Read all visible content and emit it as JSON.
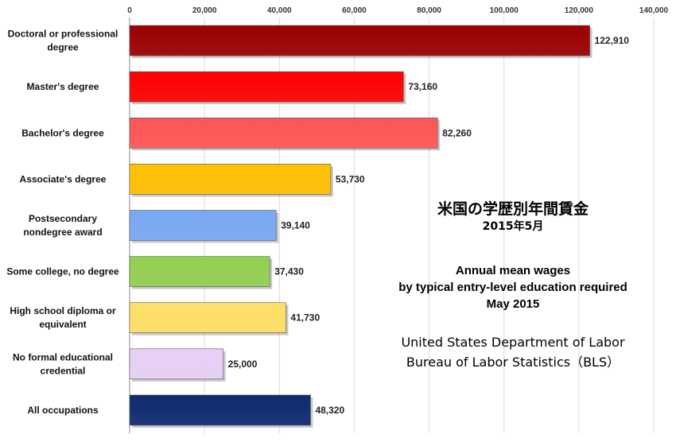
{
  "chart_data": {
    "type": "bar",
    "orientation": "horizontal",
    "categories": [
      "Doctoral or professional degree",
      "Master's degree",
      "Bachelor's degree",
      "Associate's degree",
      "Postsecondary nondegree award",
      "Some college, no degree",
      "High school diploma or equivalent",
      "No formal educational credential",
      "All occupations"
    ],
    "category_lines": [
      [
        "Doctoral or professional",
        "degree"
      ],
      [
        "Master's degree"
      ],
      [
        "Bachelor's degree"
      ],
      [
        "Associate's degree"
      ],
      [
        "Postsecondary",
        "nondegree award"
      ],
      [
        "Some college, no degree"
      ],
      [
        "High school diploma or",
        "equivalent"
      ],
      [
        "No formal educational",
        "credential"
      ],
      [
        "All occupations"
      ]
    ],
    "values": [
      122910,
      73160,
      82260,
      53730,
      39140,
      37430,
      41730,
      25000,
      48320
    ],
    "value_labels": [
      "122,910",
      "73,160",
      "82,260",
      "53,730",
      "39,140",
      "37,430",
      "41,730",
      "25,000",
      "48,320"
    ],
    "colors": [
      "#9b0000",
      "#ff0000",
      "#ff5555",
      "#ffc000",
      "#7aa8f5",
      "#92d050",
      "#ffe066",
      "#e8d0f7",
      "#0e2a6e"
    ],
    "xlim": [
      0,
      140000
    ],
    "x_ticks": [
      0,
      20000,
      40000,
      60000,
      80000,
      100000,
      120000,
      140000
    ],
    "x_tick_labels": [
      "0",
      "20,000",
      "40,000",
      "60,000",
      "80,000",
      "100,000",
      "120,000",
      "140,000"
    ],
    "x_axis_position": "top",
    "grid": true
  },
  "annotation": {
    "title_jp": "米国の学歴別年間賃金",
    "subtitle_jp": "2015年5月",
    "title_en_lines": [
      "Annual mean wages",
      "by typical entry-level education required",
      "May 2015"
    ],
    "source_lines": [
      "United States Department of Labor",
      "Bureau of Labor Statistics（BLS）"
    ]
  }
}
